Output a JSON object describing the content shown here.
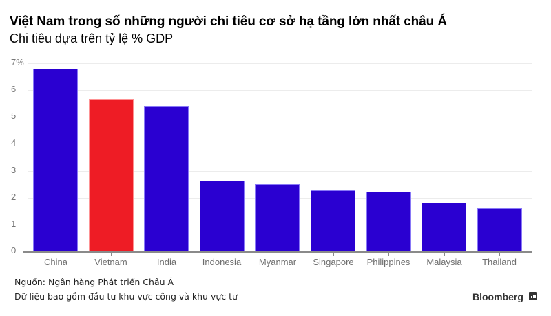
{
  "header": {
    "title": "Việt Nam trong số những người chi tiêu cơ sở hạ tầng lớn nhất châu Á",
    "subtitle": "Chi tiêu dựa trên tỷ lệ % GDP"
  },
  "y_axis": {
    "ticks": [
      "0",
      "1",
      "2",
      "3",
      "4",
      "5",
      "6",
      "7%"
    ]
  },
  "x_axis": {
    "labels": [
      "China",
      "Vietnam",
      "India",
      "Indonesia",
      "Myanmar",
      "Singapore",
      "Philippines",
      "Malaysia",
      "Thailand"
    ]
  },
  "footer": {
    "source": "Nguồn: Ngân hàng Phát triển Châu Á",
    "note": "Dữ liệu bao gồm đầu tư khu vực công và khu vực tư",
    "brand": "Bloomberg",
    "brand_icon": "bloomberg-chart-icon"
  },
  "colors": {
    "default_bar": "#2a00d1",
    "highlight_bar": "#ee1c25",
    "gridline": "#ececec",
    "axis": "#8a8a8a"
  },
  "chart_data": {
    "type": "bar",
    "title": "Việt Nam trong số những người chi tiêu cơ sở hạ tầng lớn nhất châu Á",
    "subtitle": "Chi tiêu dựa trên tỷ lệ % GDP",
    "categories": [
      "China",
      "Vietnam",
      "India",
      "Indonesia",
      "Myanmar",
      "Singapore",
      "Philippines",
      "Malaysia",
      "Thailand"
    ],
    "values": [
      6.8,
      5.66,
      5.4,
      2.63,
      2.5,
      2.28,
      2.22,
      1.81,
      1.61
    ],
    "highlight": "Vietnam",
    "xlabel": "",
    "ylabel": "% GDP",
    "ylim": [
      0,
      7
    ],
    "yticks": [
      0,
      1,
      2,
      3,
      4,
      5,
      6,
      7
    ],
    "grid": true,
    "legend": null,
    "source": "Nguồn: Ngân hàng Phát triển Châu Á",
    "annotation": "Dữ liệu bao gồm đầu tư khu vực công và khu vực tư"
  }
}
